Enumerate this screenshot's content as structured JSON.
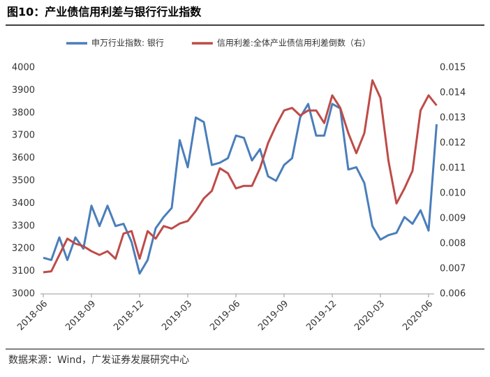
{
  "title": "图10：产业债信用利差与银行行业指数",
  "source": "数据来源：Wind，广发证券发展研究中心",
  "chart_data": {
    "type": "line",
    "categories": [
      "2018-06",
      null,
      null,
      null,
      null,
      null,
      "2018-09",
      null,
      null,
      null,
      null,
      null,
      "2018-12",
      null,
      null,
      null,
      null,
      null,
      "2019-03",
      null,
      null,
      null,
      null,
      null,
      "2019-06",
      null,
      null,
      null,
      null,
      null,
      "2019-09",
      null,
      null,
      null,
      null,
      null,
      "2019-12",
      null,
      null,
      null,
      null,
      null,
      "2020-03",
      null,
      null,
      null,
      null,
      null,
      "2020-06",
      null
    ],
    "series": [
      {
        "name": "申万行业指数: 银行",
        "color": "#4a7ebb",
        "values": [
          3160,
          3150,
          3250,
          3150,
          3250,
          3200,
          3390,
          3300,
          3390,
          3300,
          3310,
          3230,
          3090,
          3150,
          3290,
          3340,
          3380,
          3680,
          3560,
          3780,
          3760,
          3570,
          3580,
          3600,
          3700,
          3690,
          3590,
          3640,
          3520,
          3500,
          3570,
          3600,
          3780,
          3840,
          3700,
          3700,
          3840,
          3820,
          3550,
          3560,
          3490,
          3300,
          3240,
          3260,
          3270,
          3340,
          3310,
          3370,
          3280,
          3750
        ]
      },
      {
        "name": "信用利差:全体产业债信用利差倒数（右）",
        "color": "#be4b48",
        "axis": "y2",
        "values": [
          0.00686,
          0.0069,
          0.00755,
          0.0082,
          0.008,
          0.0079,
          0.0077,
          0.00755,
          0.0077,
          0.0074,
          0.0084,
          0.0085,
          0.0074,
          0.0085,
          0.0082,
          0.0087,
          0.0086,
          0.0088,
          0.0089,
          0.0093,
          0.0098,
          0.0101,
          0.011,
          0.0108,
          0.0102,
          0.0103,
          0.0103,
          0.011,
          0.012,
          0.0127,
          0.0133,
          0.0134,
          0.0131,
          0.0133,
          0.0133,
          0.0128,
          0.0139,
          0.0134,
          0.0124,
          0.0116,
          0.0124,
          0.0145,
          0.0138,
          0.0113,
          0.0096,
          0.0102,
          0.0109,
          0.0133,
          0.0139,
          0.0135
        ]
      }
    ],
    "ylim": [
      3000,
      4000
    ],
    "yticks": [
      3000,
      3100,
      3200,
      3300,
      3400,
      3500,
      3600,
      3700,
      3800,
      3900,
      4000
    ],
    "y2lim": [
      0.006,
      0.015
    ],
    "y2ticks": [
      0.006,
      0.007,
      0.008,
      0.009,
      {
        "value": 0.01,
        "label": "0.010"
      },
      0.011,
      0.012,
      0.013,
      0.014,
      0.015
    ],
    "legend": "top"
  }
}
